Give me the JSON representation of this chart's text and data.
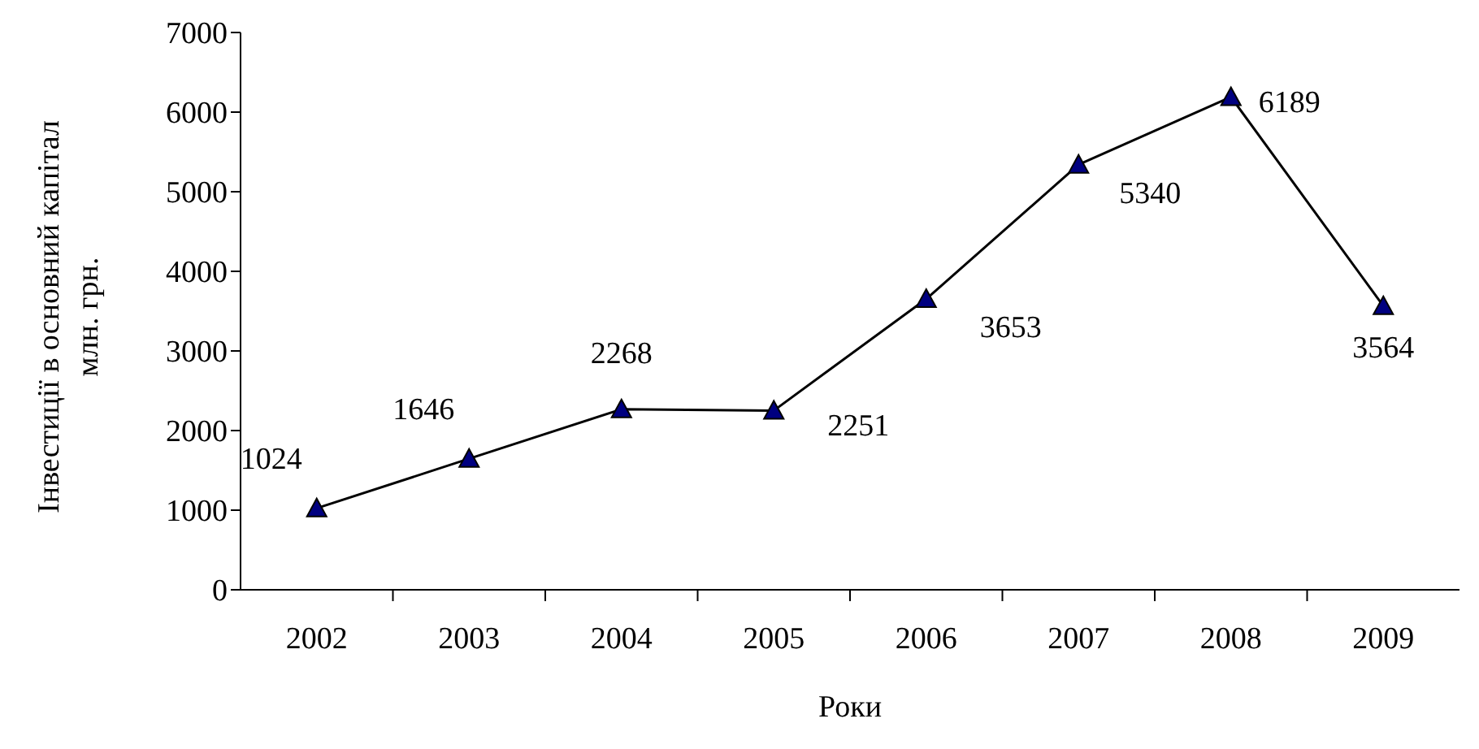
{
  "chart_data": {
    "type": "line",
    "xlabel": "Роки",
    "ylabel": "Інвестиції в основний капітал\nмлн. грн.",
    "categories": [
      "2002",
      "2003",
      "2004",
      "2005",
      "2006",
      "2007",
      "2008",
      "2009"
    ],
    "series": [
      {
        "color": "#000080",
        "values": [
          1024,
          1646,
          2268,
          2251,
          3653,
          5340,
          6189,
          3564
        ]
      }
    ],
    "ylim": [
      0,
      7000
    ],
    "yticks": [
      0,
      1000,
      2000,
      3000,
      4000,
      5000,
      6000,
      7000
    ],
    "grid": false,
    "legend": false,
    "marker": "triangle",
    "line_style": "solid",
    "data_labels": true
  }
}
